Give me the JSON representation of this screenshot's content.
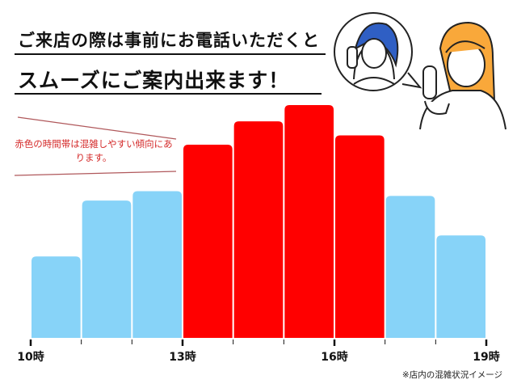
{
  "header": {
    "line1": "ご来店の際は事前にお電話いただくと",
    "line2": "スムーズにご案内出来ます！"
  },
  "note": "赤色の時間帯は混雑しやすい傾向にあります。",
  "caption": "※店内の混雑状況イメージ",
  "colors": {
    "busy": "#ff0000",
    "normal": "#87d3f8",
    "note": "#d42a2a"
  },
  "illustration": "two-women-on-phone-icons",
  "chart_data": {
    "type": "bar",
    "x_ticks": [
      "10時",
      "13時",
      "16時",
      "19時"
    ],
    "slots": [
      "10-11",
      "11-12",
      "12-13",
      "13-14",
      "14-15",
      "15-16",
      "16-17",
      "17-18",
      "18-19"
    ],
    "values": [
      35,
      59,
      63,
      83,
      93,
      100,
      87,
      61,
      44
    ],
    "busy": [
      false,
      false,
      false,
      true,
      true,
      true,
      true,
      false,
      false
    ],
    "xlim": [
      10,
      19
    ],
    "ylim": [
      0,
      100
    ],
    "grid": false,
    "y_axis_shown": false
  }
}
